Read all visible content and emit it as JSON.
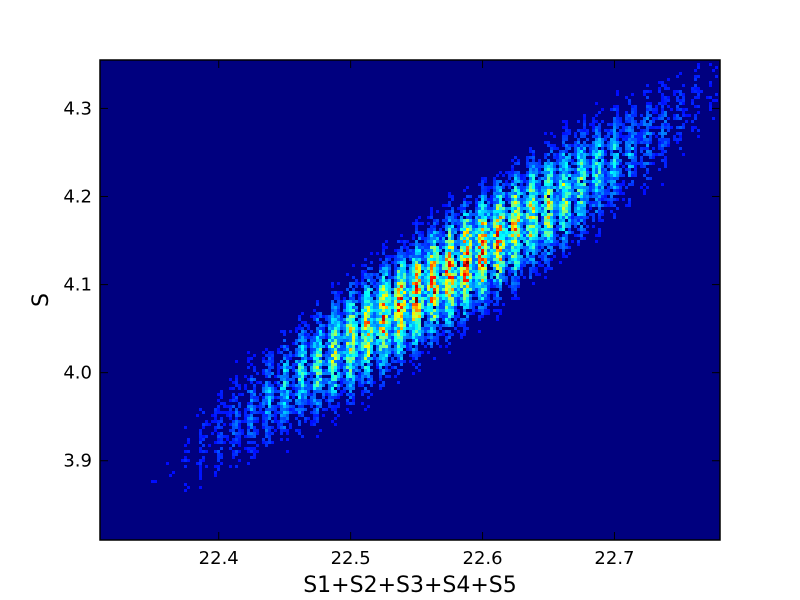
{
  "chart_data": {
    "type": "heatmap",
    "title": "",
    "xlabel": "S1+S2+S3+S4+S5",
    "ylabel": "S",
    "xlim": [
      22.31,
      22.78
    ],
    "ylim": [
      3.81,
      4.355
    ],
    "xticks": [
      22.4,
      22.5,
      22.6,
      22.7
    ],
    "xtick_labels": [
      "22.4",
      "22.5",
      "22.6",
      "22.7"
    ],
    "yticks": [
      3.9,
      4.0,
      4.1,
      4.2,
      4.3
    ],
    "ytick_labels": [
      "3.9",
      "4.0",
      "4.1",
      "4.2",
      "4.3"
    ],
    "grid": false,
    "colormap": "jet",
    "background_color": "#00007f",
    "density": {
      "description_of_fit": "2D histogram concentrated along a linear band",
      "band_line": {
        "intercept_x": 22.31,
        "intercept_y": 3.84,
        "slope": 1.03
      },
      "band_center": {
        "x": 22.575,
        "y": 4.13
      },
      "band_sigma_along_x": 0.085,
      "band_sigma_across_y": 0.035,
      "peak_count": 9,
      "ridge_period_x": 0.0125
    }
  }
}
